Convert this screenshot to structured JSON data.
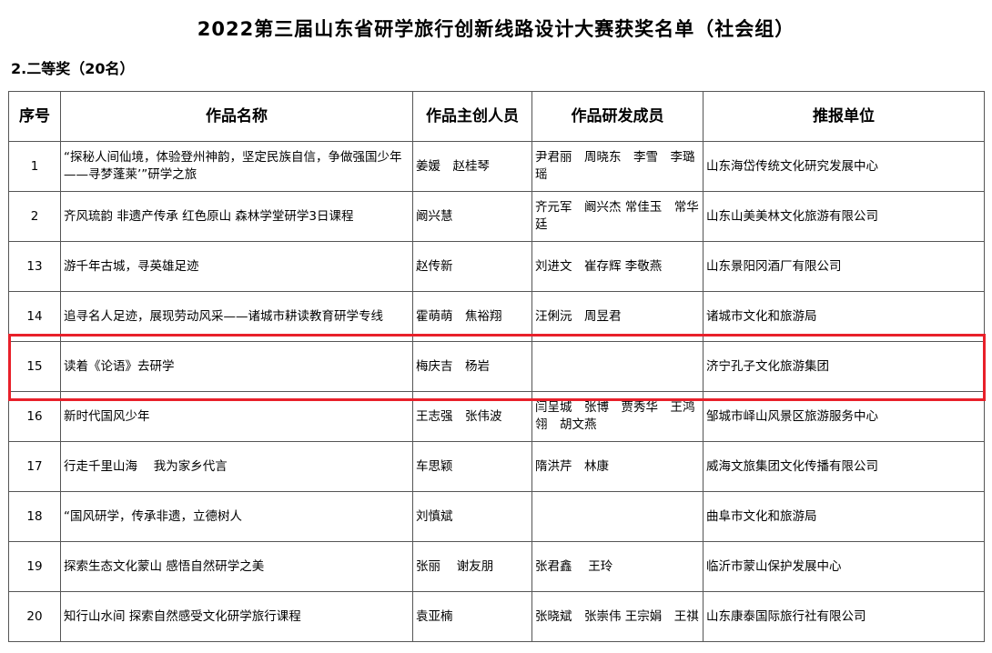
{
  "title": "2022第三届山东省研学旅行创新线路设计大赛获奖名单（社会组）",
  "subtitle": "2.二等奖（20名）",
  "highlight_color": "#e8202a",
  "headers": [
    "序号",
    "作品名称",
    "作品主创人员",
    "作品研发成员",
    "推报单位"
  ],
  "rows": [
    [
      "1",
      "“探秘人间仙境，体验登州神韵，坚定民族自信，争做强国少年——寻梦蓬莱’”研学之旅",
      "姜媛　赵桂琴",
      "尹君丽　周晓东　李雪　李璐瑶",
      "山东海岱传统文化研究发展中心"
    ],
    [
      "2",
      "齐风琉韵 非遗产传承 红色原山 森林学堂研学3日课程",
      "阚兴慧",
      "齐元军　阚兴杰 常佳玉　常华廷",
      "山东山美美林文化旅游有限公司"
    ],
    [
      "13",
      "游千年古城，寻英雄足迹",
      "赵传新",
      "刘进文　崔存辉 李敬燕",
      "山东景阳冈酒厂有限公司"
    ],
    [
      "14",
      "追寻名人足迹，展现劳动风采——诸城市耕读教育研学专线",
      "霍萌萌　焦裕翔",
      "汪俐沅　周昱君",
      "诸城市文化和旅游局"
    ],
    [
      "15",
      "读着《论语》去研学",
      "梅庆吉　杨岩",
      "",
      "济宁孔子文化旅游集团"
    ],
    [
      "16",
      "新时代国风少年",
      "王志强　张伟波",
      "闫呈城　张博　贾秀华　王鸿翎　胡文燕",
      "邹城市峄山风景区旅游服务中心"
    ],
    [
      "17",
      "行走千里山海　 我为家乡代言",
      "车思颖",
      "隋洪芹　林康",
      "威海文旅集团文化传播有限公司"
    ],
    [
      "18",
      "“国风研学，传承非遗，立德树人",
      "刘慎斌",
      "",
      "曲阜市文化和旅游局"
    ],
    [
      "19",
      "探索生态文化蒙山 感悟自然研学之美",
      "张丽　 谢友朋",
      "张君鑫　 王玲",
      "临沂市蒙山保护发展中心"
    ],
    [
      "20",
      "知行山水间 探索自然感受文化研学旅行课程",
      "袁亚楠",
      "张晓斌　张崇伟 王宗娟　王祺",
      "山东康泰国际旅行社有限公司"
    ]
  ]
}
